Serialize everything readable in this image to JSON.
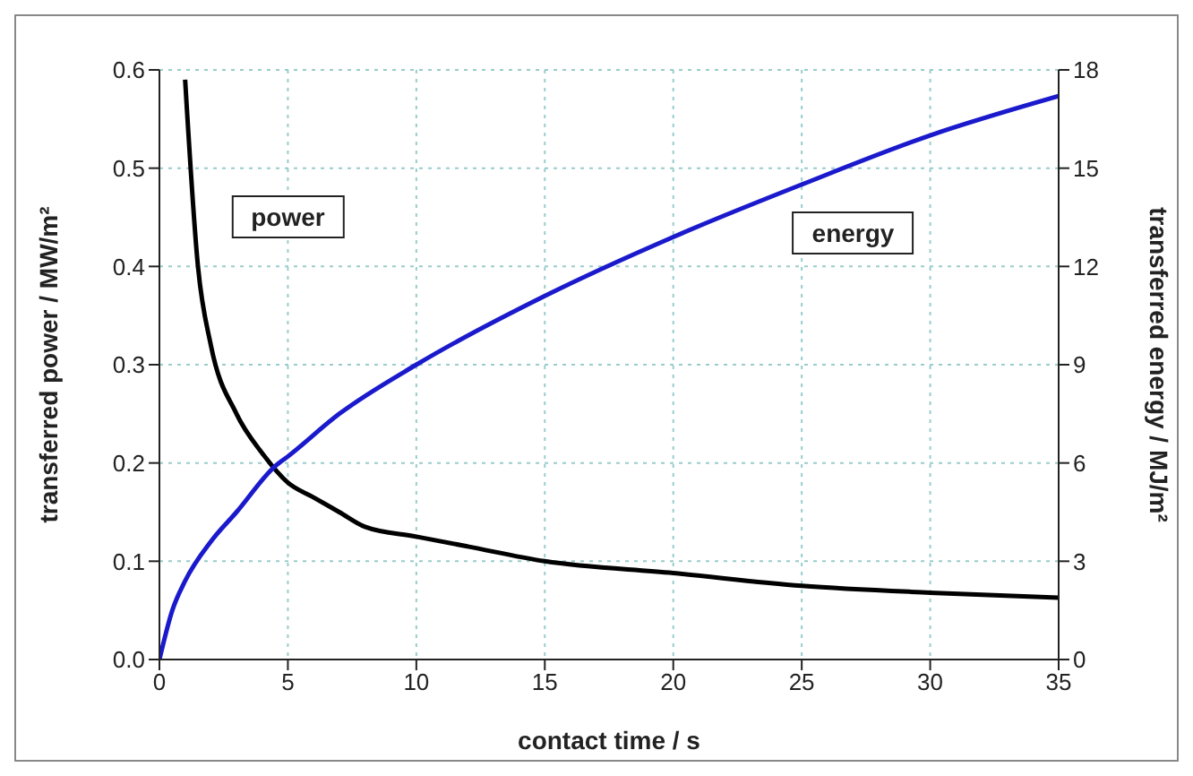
{
  "chart_data": {
    "type": "line",
    "xlabel": "contact time / s",
    "ylabel": "transferred power / MW/m²",
    "y2label": "transferred energy / MJ/m²",
    "xlim": [
      0,
      35
    ],
    "xticks": [
      0,
      5,
      10,
      15,
      20,
      25,
      30,
      35
    ],
    "ylim": [
      0,
      0.6
    ],
    "yticks": [
      {
        "value": 0,
        "label": "0.0"
      },
      0.1,
      0.2,
      0.3,
      0.4,
      0.5,
      0.6
    ],
    "y2lim": [
      0,
      18
    ],
    "y2ticks": [
      0,
      3,
      6,
      9,
      12,
      15,
      18
    ],
    "grid": true,
    "marker": "none",
    "line_style": "solid",
    "series": [
      {
        "name": "power",
        "color": "#000000",
        "x": [
          1,
          1.5,
          2,
          3,
          4,
          5,
          6,
          7,
          8,
          10,
          12,
          15,
          20,
          25,
          30,
          35
        ],
        "values": [
          0.59,
          0.4,
          0.32,
          0.25,
          0.21,
          0.18,
          0.165,
          0.15,
          0.135,
          0.125,
          0.115,
          0.1,
          0.088,
          0.075,
          0.068,
          0.063
        ]
      },
      {
        "name": "energy",
        "color": "#1a1acc",
        "axis": "y2",
        "x": [
          0,
          0.5,
          1,
          2,
          3,
          4.5,
          5,
          7,
          10,
          15,
          20,
          25,
          30,
          35
        ],
        "values": [
          0,
          1.5,
          2.4,
          3.6,
          4.5,
          5.9,
          6.2,
          7.5,
          9.0,
          11.1,
          12.9,
          14.5,
          16.0,
          17.2
        ]
      }
    ]
  }
}
